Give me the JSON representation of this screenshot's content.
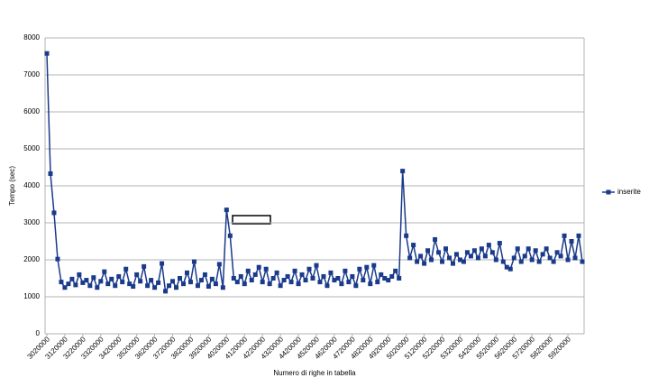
{
  "chart_data": {
    "type": "line",
    "y_label": "Tempo (sec)",
    "x_label": "Numero di righe in tabella",
    "categories": [
      "3020000",
      null,
      null,
      null,
      null,
      "3120000",
      null,
      null,
      null,
      null,
      "3220000",
      null,
      null,
      null,
      null,
      "3320000",
      null,
      null,
      null,
      null,
      "3420000",
      null,
      null,
      null,
      null,
      "3520000",
      null,
      null,
      null,
      null,
      "3620000",
      null,
      null,
      null,
      null,
      "3720000",
      null,
      null,
      null,
      null,
      "3820000",
      null,
      null,
      null,
      null,
      "3920000",
      null,
      null,
      null,
      null,
      "4020000",
      null,
      null,
      null,
      null,
      "4120000",
      null,
      null,
      null,
      null,
      "4220000",
      null,
      null,
      null,
      null,
      "4320000",
      null,
      null,
      null,
      null,
      "4420000",
      null,
      null,
      null,
      null,
      "4520000",
      null,
      null,
      null,
      null,
      "4620000",
      null,
      null,
      null,
      null,
      "4720000",
      null,
      null,
      null,
      null,
      "4820000",
      null,
      null,
      null,
      null,
      "4920000",
      null,
      null,
      null,
      null,
      "5020000",
      null,
      null,
      null,
      null,
      "5120000",
      null,
      null,
      null,
      null,
      "5220000",
      null,
      null,
      null,
      null,
      "5320000",
      null,
      null,
      null,
      null,
      "5420000",
      null,
      null,
      null,
      null,
      "5520000",
      null,
      null,
      null,
      null,
      "5620000",
      null,
      null,
      null,
      null,
      "5720000",
      null,
      null,
      null,
      null,
      "5820000",
      null,
      null,
      null,
      null,
      "5920000",
      null,
      null,
      null,
      null
    ],
    "series": [
      {
        "name": "inserite",
        "color": "#1a3a8a",
        "values": [
          7580,
          4330,
          3270,
          2020,
          1400,
          1250,
          1350,
          1480,
          1320,
          1600,
          1380,
          1450,
          1300,
          1520,
          1250,
          1420,
          1680,
          1350,
          1480,
          1300,
          1550,
          1400,
          1750,
          1350,
          1280,
          1600,
          1420,
          1820,
          1300,
          1450,
          1250,
          1380,
          1900,
          1150,
          1300,
          1420,
          1250,
          1500,
          1350,
          1650,
          1400,
          1950,
          1300,
          1450,
          1600,
          1280,
          1480,
          1350,
          1880,
          1250,
          3350,
          2650,
          1500,
          1400,
          1550,
          1350,
          1700,
          1450,
          1600,
          1800,
          1400,
          1750,
          1350,
          1500,
          1650,
          1300,
          1450,
          1550,
          1400,
          1700,
          1350,
          1600,
          1450,
          1750,
          1500,
          1850,
          1400,
          1550,
          1300,
          1650,
          1450,
          1500,
          1350,
          1700,
          1400,
          1550,
          1300,
          1750,
          1450,
          1800,
          1350,
          1850,
          1400,
          1600,
          1500,
          1450,
          1550,
          1700,
          1500,
          4400,
          2650,
          2050,
          2400,
          1950,
          2100,
          1900,
          2250,
          2000,
          2550,
          2200,
          1950,
          2300,
          2050,
          1900,
          2150,
          2000,
          1950,
          2200,
          2100,
          2250,
          2050,
          2300,
          2100,
          2400,
          2200,
          2000,
          2450,
          1950,
          1800,
          1750,
          2050,
          2300,
          1950,
          2100,
          2300,
          2000,
          2250,
          1950,
          2150,
          2300,
          2050,
          1950,
          2200,
          2100,
          2650,
          2000,
          2500,
          2050,
          2650,
          1950
        ]
      }
    ],
    "ylim": [
      0,
      8000
    ],
    "yticks": [
      0,
      1000,
      2000,
      3000,
      4000,
      5000,
      6000,
      7000,
      8000
    ],
    "grid": true,
    "legend": "right"
  }
}
